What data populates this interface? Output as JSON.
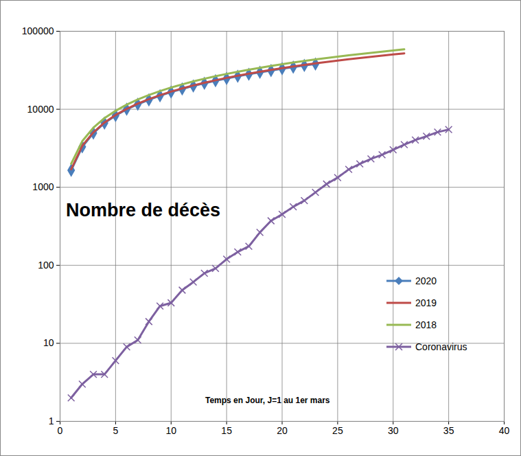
{
  "chart_data": {
    "type": "line",
    "xlabel": "Temps en Jour, J=1 au 1er mars",
    "ylabel": "Nombre de décès",
    "log": "y",
    "grid": true,
    "legend": "right",
    "xlim": [
      0,
      40
    ],
    "xticks": [
      0,
      5,
      10,
      15,
      20,
      25,
      30,
      35,
      40
    ],
    "ylim": [
      1,
      100000
    ],
    "yticks": [
      1,
      10,
      100,
      1000,
      10000,
      100000
    ],
    "x": [
      1,
      2,
      3,
      4,
      5,
      6,
      7,
      8,
      9,
      10,
      11,
      12,
      13,
      14,
      15,
      16,
      17,
      18,
      19,
      20,
      21,
      22,
      23,
      24,
      25,
      26,
      27,
      28,
      29,
      30,
      31,
      32,
      33,
      34,
      35
    ],
    "series": [
      {
        "name": "2020",
        "color": "#4a7ebb",
        "marker": "diamond",
        "values": [
          1650,
          3300,
          4950,
          6650,
          8300,
          10000,
          11600,
          13200,
          14900,
          16600,
          18200,
          19900,
          21500,
          23200,
          24800,
          26500,
          28100,
          29800,
          31400,
          33100,
          34700,
          36400,
          38000,
          null,
          null,
          null,
          null,
          null,
          null,
          null,
          null,
          null,
          null,
          null,
          null
        ]
      },
      {
        "name": "2019",
        "color": "#be4b48",
        "values": [
          1700,
          3400,
          5050,
          6750,
          8450,
          10100,
          11800,
          13500,
          15150,
          16850,
          18500,
          20200,
          21900,
          23550,
          25250,
          26900,
          28600,
          30300,
          31950,
          33650,
          35350,
          37000,
          38700,
          40400,
          42050,
          43750,
          45400,
          47100,
          48800,
          50450,
          52100,
          null,
          null,
          null,
          null
        ]
      },
      {
        "name": "2018",
        "color": "#98b954",
        "values": [
          2000,
          3900,
          5800,
          7700,
          9550,
          11450,
          13350,
          15200,
          17100,
          19000,
          20850,
          22750,
          24650,
          26500,
          28400,
          30300,
          32150,
          34050,
          35950,
          37800,
          39700,
          41600,
          43500,
          45350,
          47250,
          49150,
          51000,
          52900,
          54800,
          56700,
          58600,
          null,
          null,
          null,
          null
        ]
      },
      {
        "name": "Coronavirus",
        "color": "#7d60a0",
        "marker": "x",
        "values": [
          2,
          3,
          4,
          4,
          6,
          9,
          11,
          19,
          30,
          33,
          48,
          61,
          79,
          91,
          120,
          148,
          175,
          264,
          372,
          450,
          562,
          674,
          860,
          1100,
          1331,
          1696,
          1995,
          2314,
          2606,
          3024,
          3523,
          4032,
          4503,
          5091,
          5500
        ]
      }
    ]
  }
}
